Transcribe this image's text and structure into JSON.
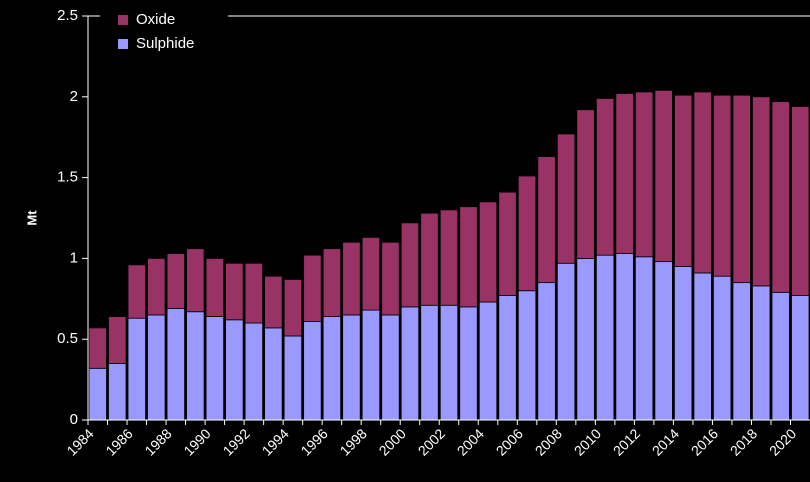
{
  "chart_data": {
    "type": "stacked_bar",
    "y_label": "Mt",
    "categories": [
      "1984",
      null,
      "1986",
      null,
      "1988",
      null,
      "1990",
      null,
      "1992",
      null,
      "1994",
      null,
      "1996",
      null,
      "1998",
      null,
      "2000",
      null,
      "2002",
      null,
      "2004",
      null,
      "2006",
      null,
      "2008",
      null,
      "2010",
      null,
      "2012",
      null,
      "2014",
      null,
      "2016",
      null,
      "2018",
      null,
      "2020"
    ],
    "series": [
      {
        "name": "Sulphide",
        "color": "#9999ff",
        "values": [
          0.32,
          0.35,
          0.63,
          0.65,
          0.69,
          0.67,
          0.64,
          0.62,
          0.6,
          0.57,
          0.52,
          0.61,
          0.64,
          0.65,
          0.68,
          0.65,
          0.7,
          0.71,
          0.71,
          0.7,
          0.73,
          0.77,
          0.8,
          0.85,
          0.97,
          1.0,
          1.02,
          1.03,
          1.01,
          0.98,
          0.95,
          0.91,
          0.89,
          0.85,
          0.83,
          0.79,
          0.77
        ]
      },
      {
        "name": "Oxide",
        "color": "#993366",
        "values": [
          0.25,
          0.29,
          0.33,
          0.35,
          0.34,
          0.39,
          0.36,
          0.35,
          0.37,
          0.32,
          0.35,
          0.41,
          0.42,
          0.45,
          0.45,
          0.45,
          0.52,
          0.57,
          0.59,
          0.62,
          0.62,
          0.64,
          0.71,
          0.78,
          0.8,
          0.92,
          0.97,
          0.99,
          1.02,
          1.06,
          1.06,
          1.12,
          1.12,
          1.16,
          1.17,
          1.18,
          1.17
        ]
      }
    ],
    "ylim": [
      0,
      2.5
    ],
    "yticks": [
      0,
      0.5,
      1,
      1.5,
      2,
      2.5
    ],
    "legend": "upper left"
  }
}
